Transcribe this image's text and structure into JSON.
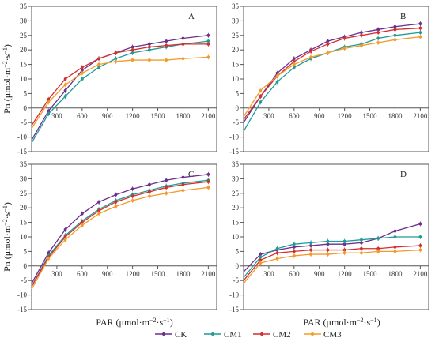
{
  "figure": {
    "ylabel_html_parts": [
      "Pn (μmol·m",
      "−2",
      "·s",
      "−1",
      ")"
    ],
    "xlabel_parts": [
      "PAR (μmol·m",
      "−2",
      "·s",
      "−1",
      ")"
    ]
  },
  "legend": [
    "CK",
    "CM1",
    "CM2",
    "CM3"
  ],
  "colors": {
    "CK": "#6a2f8a",
    "CM1": "#1f9c96",
    "CM2": "#d32f2f",
    "CM3": "#f39a2b"
  },
  "chart_data": [
    {
      "type": "line",
      "panel_label": "A",
      "x": [
        0,
        200,
        400,
        600,
        800,
        1000,
        1200,
        1400,
        1600,
        1800,
        2100
      ],
      "xticks": [
        300,
        600,
        900,
        1200,
        1500,
        1800,
        2100
      ],
      "ylim": [
        -15,
        35
      ],
      "yticks": [
        -15,
        -10,
        -5,
        0,
        5,
        10,
        15,
        20,
        25,
        30,
        35
      ],
      "series": [
        {
          "name": "CK",
          "values": [
            -11,
            -1,
            6,
            13,
            17,
            19,
            21,
            22,
            23,
            24,
            25
          ]
        },
        {
          "name": "CM1",
          "values": [
            -12,
            -2,
            4,
            10,
            14,
            17,
            19,
            20,
            21,
            22,
            23
          ]
        },
        {
          "name": "CM2",
          "values": [
            -6,
            3,
            10,
            14,
            17,
            19,
            20,
            21,
            21.5,
            22,
            22
          ]
        },
        {
          "name": "CM3",
          "values": [
            -7,
            2,
            8,
            12,
            15,
            16,
            16.5,
            16.5,
            16.5,
            17,
            17.5
          ]
        }
      ]
    },
    {
      "type": "line",
      "panel_label": "B",
      "x": [
        0,
        200,
        400,
        600,
        800,
        1000,
        1200,
        1400,
        1600,
        1800,
        2100
      ],
      "xticks": [
        300,
        600,
        900,
        1200,
        1500,
        1800,
        2100
      ],
      "ylim": [
        -15,
        35
      ],
      "yticks": [
        -15,
        -10,
        -5,
        0,
        5,
        10,
        15,
        20,
        25,
        30,
        35
      ],
      "series": [
        {
          "name": "CK",
          "values": [
            -5,
            4,
            12,
            17,
            20,
            23,
            24.5,
            26,
            27,
            28,
            29
          ]
        },
        {
          "name": "CM1",
          "values": [
            -8,
            2,
            9,
            14,
            17,
            19,
            21,
            22,
            24,
            25,
            26
          ]
        },
        {
          "name": "CM2",
          "values": [
            -4,
            4,
            11,
            16,
            19.5,
            22,
            24,
            25,
            26,
            27,
            27.5
          ]
        },
        {
          "name": "CM3",
          "values": [
            -3,
            6,
            11,
            15,
            17.5,
            19,
            20.5,
            21.5,
            22.5,
            23.5,
            24.5
          ]
        }
      ]
    },
    {
      "type": "line",
      "panel_label": "C",
      "x": [
        0,
        200,
        400,
        600,
        800,
        1000,
        1200,
        1400,
        1600,
        1800,
        2100
      ],
      "xticks": [
        300,
        600,
        900,
        1200,
        1500,
        1800,
        2100
      ],
      "ylim": [
        -15,
        35
      ],
      "yticks": [
        -15,
        -10,
        -5,
        0,
        5,
        10,
        15,
        20,
        25,
        30,
        35
      ],
      "series": [
        {
          "name": "CK",
          "values": [
            -6,
            4.5,
            12.5,
            18,
            22,
            24.5,
            26.5,
            28,
            29.5,
            30.5,
            31.5
          ]
        },
        {
          "name": "CM1",
          "values": [
            -7,
            3.5,
            10.5,
            15.5,
            19.5,
            22.5,
            24.5,
            26,
            27.5,
            28.5,
            29.5
          ]
        },
        {
          "name": "CM2",
          "values": [
            -7,
            3,
            10,
            15,
            19,
            22,
            24,
            25.5,
            27,
            28,
            29
          ]
        },
        {
          "name": "CM3",
          "values": [
            -8,
            2.5,
            9,
            14,
            18,
            20.5,
            22.5,
            24,
            25,
            26,
            27
          ]
        }
      ]
    },
    {
      "type": "line",
      "panel_label": "D",
      "x": [
        0,
        200,
        400,
        600,
        800,
        1000,
        1200,
        1400,
        1600,
        1800,
        2100
      ],
      "xticks": [
        300,
        600,
        900,
        1200,
        1500,
        1800,
        2100
      ],
      "ylim": [
        -15,
        35
      ],
      "yticks": [
        -15,
        -10,
        -5,
        0,
        5,
        10,
        15,
        20,
        25,
        30,
        35
      ],
      "series": [
        {
          "name": "CK",
          "values": [
            -2,
            4,
            5.5,
            6.5,
            7,
            7.5,
            7.5,
            8,
            9.5,
            12,
            14.5
          ]
        },
        {
          "name": "CM1",
          "values": [
            -4,
            3,
            6,
            7.5,
            8,
            8.5,
            8.5,
            9,
            9.5,
            10,
            10
          ]
        },
        {
          "name": "CM2",
          "values": [
            -5,
            2,
            4.5,
            5,
            5.5,
            5.5,
            5.5,
            6,
            6,
            6.5,
            7
          ]
        },
        {
          "name": "CM3",
          "values": [
            -6,
            1,
            2.5,
            3.5,
            4,
            4,
            4.5,
            4.5,
            5,
            5,
            5.5
          ]
        }
      ]
    }
  ]
}
